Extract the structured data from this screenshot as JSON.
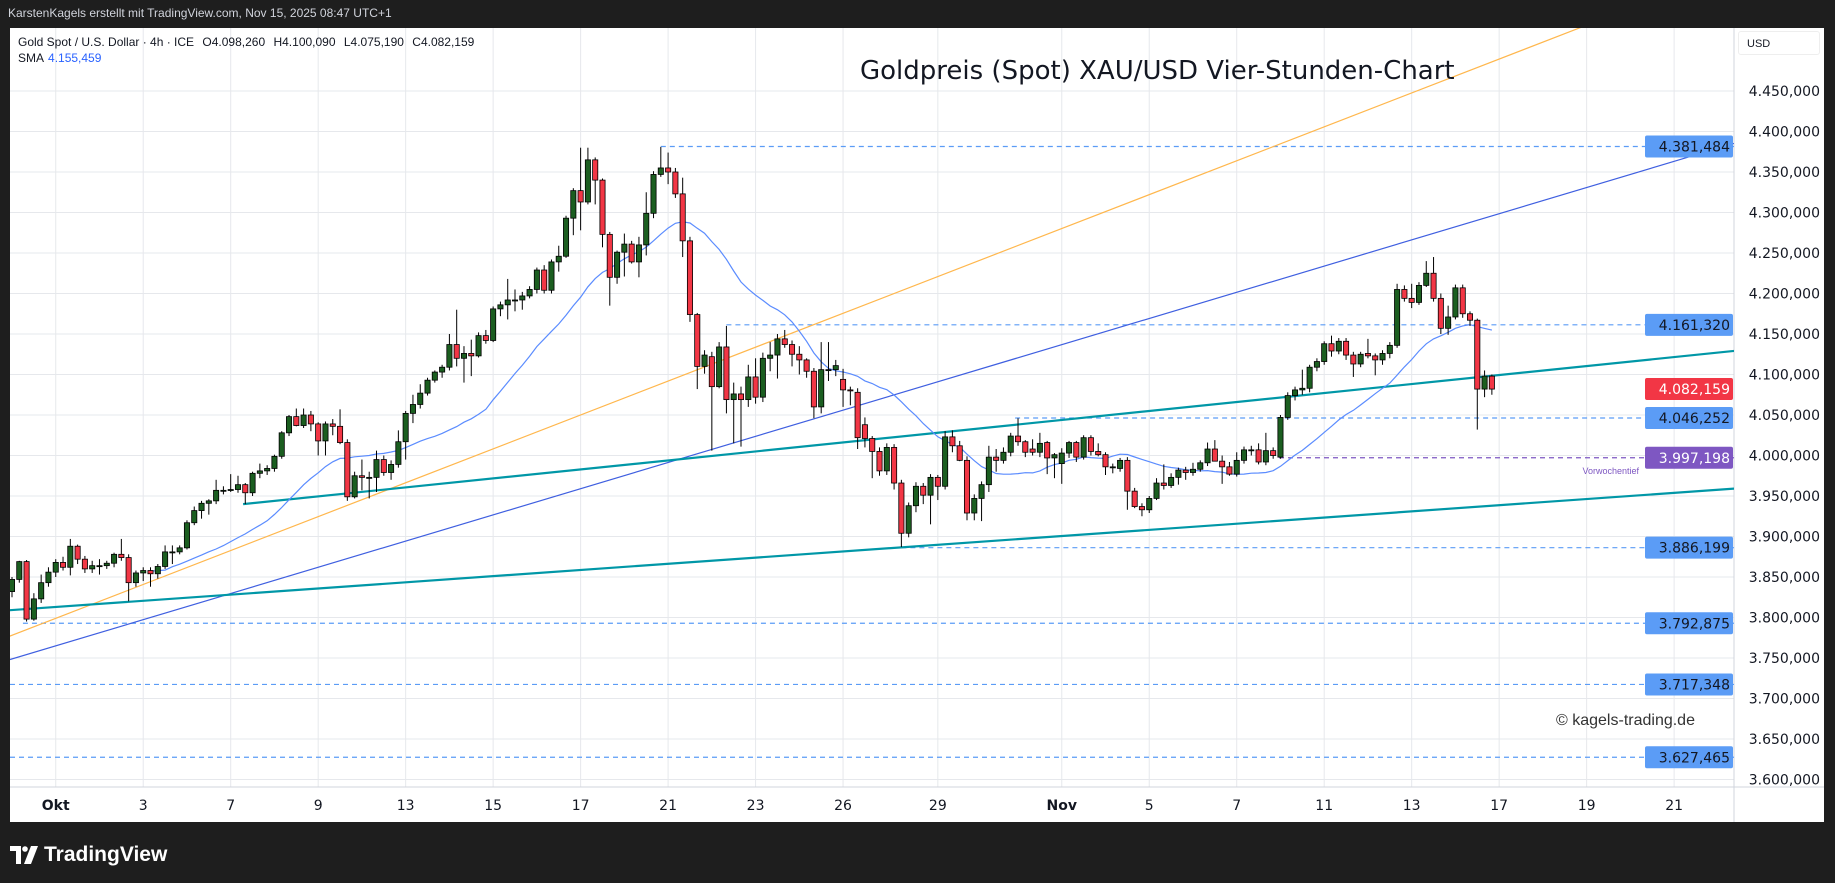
{
  "header": {
    "credit": "KarstenKagels erstellt mit TradingView.com, Nov 15, 2025 08:47 UTC+1"
  },
  "legend": {
    "symbol": "Gold Spot / U.S. Dollar · 4h · ICE",
    "open": "O4.098,260",
    "high": "H4.100,090",
    "low": "L4.075,190",
    "close": "C4.082,159",
    "sma_label": "SMA",
    "sma_value": "4.155,459"
  },
  "currency": "USD",
  "watermark": "© kagels-trading.de",
  "footer": {
    "brand": "TradingView",
    "logo_icon": "tradingview-logo-icon"
  },
  "chart_data": {
    "type": "candlestick",
    "title": "Goldpreis (Spot) XAU/USD Vier-Stunden-Chart",
    "interval": "4h",
    "ylim": [
      3580,
      4520
    ],
    "grid": true,
    "colors": {
      "up": "#1b5e20",
      "down": "#f23645",
      "sma": "#5b8cff",
      "level": "#5b9cf6",
      "last_price": "#f23645",
      "prior_week_low": "#7e57c2"
    },
    "y_ticks": [
      "3.600,000",
      "3.650,000",
      "3.700,000",
      "3.750,000",
      "3.800,000",
      "3.850,000",
      "3.900,000",
      "3.950,000",
      "4.000,000",
      "4.050,000",
      "4.100,000",
      "4.150,000",
      "4.200,000",
      "4.250,000",
      "4.300,000",
      "4.350,000",
      "4.400,000",
      "4.450,000"
    ],
    "y_tick_values": [
      3600,
      3650,
      3700,
      3750,
      3800,
      3850,
      3900,
      3950,
      4000,
      4050,
      4100,
      4150,
      4200,
      4250,
      4300,
      4350,
      4400,
      4450
    ],
    "x_ticks": [
      {
        "label": "Okt",
        "bar": 6,
        "bold": true
      },
      {
        "label": "3",
        "bar": 18
      },
      {
        "label": "7",
        "bar": 30
      },
      {
        "label": "9",
        "bar": 42
      },
      {
        "label": "13",
        "bar": 54
      },
      {
        "label": "15",
        "bar": 66
      },
      {
        "label": "17",
        "bar": 78
      },
      {
        "label": "21",
        "bar": 90
      },
      {
        "label": "23",
        "bar": 102
      },
      {
        "label": "26",
        "bar": 114
      },
      {
        "label": "29",
        "bar": 127
      },
      {
        "label": "Nov",
        "bar": 144,
        "bold": true
      },
      {
        "label": "5",
        "bar": 156
      },
      {
        "label": "7",
        "bar": 168
      },
      {
        "label": "11",
        "bar": 180
      },
      {
        "label": "13",
        "bar": 192
      },
      {
        "label": "17",
        "bar": 204
      },
      {
        "label": "19",
        "bar": 216
      },
      {
        "label": "21",
        "bar": 228
      }
    ],
    "candles": [
      [
        3832,
        3850,
        3825,
        3847
      ],
      [
        3847,
        3870,
        3843,
        3869
      ],
      [
        3869,
        3871,
        3795,
        3798
      ],
      [
        3798,
        3830,
        3796,
        3823
      ],
      [
        3823,
        3853,
        3818,
        3843
      ],
      [
        3843,
        3862,
        3838,
        3856
      ],
      [
        3856,
        3872,
        3850,
        3868
      ],
      [
        3868,
        3875,
        3858,
        3862
      ],
      [
        3862,
        3897,
        3852,
        3888
      ],
      [
        3888,
        3890,
        3866,
        3872
      ],
      [
        3872,
        3876,
        3855,
        3860
      ],
      [
        3860,
        3870,
        3855,
        3864
      ],
      [
        3864,
        3872,
        3853,
        3864
      ],
      [
        3864,
        3870,
        3860,
        3867
      ],
      [
        3867,
        3880,
        3862,
        3878
      ],
      [
        3878,
        3897,
        3870,
        3874
      ],
      [
        3874,
        3878,
        3820,
        3843
      ],
      [
        3843,
        3858,
        3838,
        3855
      ],
      [
        3855,
        3862,
        3845,
        3858
      ],
      [
        3858,
        3862,
        3838,
        3854
      ],
      [
        3854,
        3866,
        3848,
        3863
      ],
      [
        3863,
        3889,
        3860,
        3881
      ],
      [
        3881,
        3889,
        3866,
        3881
      ],
      [
        3881,
        3889,
        3878,
        3886
      ],
      [
        3886,
        3920,
        3884,
        3917
      ],
      [
        3917,
        3937,
        3914,
        3932
      ],
      [
        3932,
        3944,
        3922,
        3941
      ],
      [
        3941,
        3946,
        3927,
        3944
      ],
      [
        3944,
        3970,
        3940,
        3957
      ],
      [
        3957,
        3962,
        3952,
        3957
      ],
      [
        3957,
        3977,
        3955,
        3958
      ],
      [
        3958,
        3975,
        3954,
        3964
      ],
      [
        3964,
        3966,
        3940,
        3954
      ],
      [
        3954,
        3980,
        3950,
        3978
      ],
      [
        3978,
        3990,
        3972,
        3981
      ],
      [
        3981,
        3988,
        3976,
        3984
      ],
      [
        3984,
        4001,
        3980,
        3999
      ],
      [
        3999,
        4030,
        3996,
        4028
      ],
      [
        4028,
        4050,
        4024,
        4048
      ],
      [
        4048,
        4058,
        4036,
        4037
      ],
      [
        4037,
        4058,
        4034,
        4050
      ],
      [
        4050,
        4055,
        4030,
        4039
      ],
      [
        4039,
        4041,
        4000,
        4018
      ],
      [
        4018,
        4042,
        4000,
        4039
      ],
      [
        4039,
        4045,
        4025,
        4036
      ],
      [
        4036,
        4057,
        4014,
        4016
      ],
      [
        4016,
        4020,
        3944,
        3949
      ],
      [
        3949,
        3980,
        3947,
        3975
      ],
      [
        3975,
        3995,
        3957,
        3973
      ],
      [
        3973,
        3980,
        3947,
        3973
      ],
      [
        3973,
        4006,
        3955,
        3995
      ],
      [
        3995,
        4000,
        3975,
        3979
      ],
      [
        3979,
        3994,
        3970,
        3989
      ],
      [
        3989,
        4031,
        3985,
        4017
      ],
      [
        4017,
        4055,
        3995,
        4052
      ],
      [
        4052,
        4075,
        4040,
        4063
      ],
      [
        4063,
        4088,
        4058,
        4077
      ],
      [
        4077,
        4096,
        4074,
        4093
      ],
      [
        4093,
        4105,
        4090,
        4103
      ],
      [
        4103,
        4112,
        4096,
        4109
      ],
      [
        4109,
        4150,
        4105,
        4137
      ],
      [
        4137,
        4180,
        4110,
        4120
      ],
      [
        4120,
        4135,
        4090,
        4126
      ],
      [
        4126,
        4143,
        4098,
        4123
      ],
      [
        4123,
        4152,
        4121,
        4148
      ],
      [
        4148,
        4155,
        4138,
        4142
      ],
      [
        4142,
        4184,
        4140,
        4181
      ],
      [
        4181,
        4190,
        4172,
        4186
      ],
      [
        4186,
        4218,
        4168,
        4192
      ],
      [
        4192,
        4205,
        4178,
        4192
      ],
      [
        4192,
        4202,
        4180,
        4197
      ],
      [
        4197,
        4209,
        4194,
        4205
      ],
      [
        4205,
        4232,
        4200,
        4229
      ],
      [
        4229,
        4235,
        4200,
        4204
      ],
      [
        4204,
        4242,
        4200,
        4239
      ],
      [
        4239,
        4259,
        4227,
        4246
      ],
      [
        4246,
        4296,
        4244,
        4293
      ],
      [
        4293,
        4330,
        4272,
        4327
      ],
      [
        4327,
        4380,
        4278,
        4313
      ],
      [
        4313,
        4380,
        4310,
        4365
      ],
      [
        4365,
        4368,
        4310,
        4340
      ],
      [
        4340,
        4342,
        4257,
        4273
      ],
      [
        4273,
        4276,
        4185,
        4220
      ],
      [
        4220,
        4253,
        4212,
        4251
      ],
      [
        4251,
        4274,
        4221,
        4261
      ],
      [
        4261,
        4265,
        4237,
        4239
      ],
      [
        4239,
        4270,
        4220,
        4260
      ],
      [
        4260,
        4325,
        4247,
        4299
      ],
      [
        4299,
        4351,
        4293,
        4347
      ],
      [
        4347,
        4381,
        4344,
        4355
      ],
      [
        4355,
        4374,
        4335,
        4350
      ],
      [
        4350,
        4355,
        4318,
        4323
      ],
      [
        4323,
        4343,
        4245,
        4265
      ],
      [
        4265,
        4270,
        4165,
        4174
      ],
      [
        4174,
        4176,
        4082,
        4110
      ],
      [
        4110,
        4130,
        4101,
        4124
      ],
      [
        4122,
        4128,
        4006,
        4085
      ],
      [
        4085,
        4140,
        4083,
        4134
      ],
      [
        4134,
        4160,
        4052,
        4069
      ],
      [
        4069,
        4090,
        4015,
        4076
      ],
      [
        4076,
        4085,
        4011,
        4069
      ],
      [
        4069,
        4112,
        4060,
        4097
      ],
      [
        4097,
        4120,
        4064,
        4072
      ],
      [
        4072,
        4127,
        4066,
        4120
      ],
      [
        4120,
        4140,
        4104,
        4124
      ],
      [
        4124,
        4150,
        4095,
        4144
      ],
      [
        4144,
        4155,
        4133,
        4137
      ],
      [
        4137,
        4142,
        4110,
        4125
      ],
      [
        4125,
        4135,
        4100,
        4118
      ],
      [
        4118,
        4120,
        4096,
        4104
      ],
      [
        4104,
        4108,
        4046,
        4060
      ],
      [
        4060,
        4140,
        4052,
        4106
      ],
      [
        4106,
        4140,
        4092,
        4106
      ],
      [
        4106,
        4118,
        4098,
        4111
      ],
      [
        4094,
        4107,
        4060,
        4081
      ],
      [
        4081,
        4085,
        4062,
        4080
      ],
      [
        4078,
        4083,
        4008,
        4022
      ],
      [
        4038,
        4047,
        4010,
        4021
      ],
      [
        4021,
        4024,
        3972,
        4005
      ],
      [
        4005,
        4010,
        3975,
        3981
      ],
      [
        3981,
        4015,
        3976,
        4010
      ],
      [
        4010,
        4014,
        3958,
        3966
      ],
      [
        3966,
        3970,
        3887,
        3904
      ],
      [
        3904,
        3942,
        3899,
        3938
      ],
      [
        3938,
        3967,
        3930,
        3962
      ],
      [
        3962,
        3966,
        3940,
        3951
      ],
      [
        3951,
        3977,
        3915,
        3973
      ],
      [
        3973,
        3976,
        3945,
        3962
      ],
      [
        3962,
        4030,
        3958,
        4023
      ],
      [
        4023,
        4031,
        4004,
        4012
      ],
      [
        4012,
        4018,
        3993,
        3994
      ],
      [
        3994,
        3999,
        3920,
        3929
      ],
      [
        3929,
        3952,
        3920,
        3947
      ],
      [
        3947,
        3968,
        3919,
        3964
      ],
      [
        3964,
        4012,
        3955,
        3998
      ],
      [
        3998,
        4008,
        3980,
        3994
      ],
      [
        3994,
        4010,
        3990,
        4004
      ],
      [
        4004,
        4028,
        3999,
        4024
      ],
      [
        4024,
        4046,
        4012,
        4017
      ],
      [
        4017,
        4019,
        3998,
        4004
      ],
      [
        4008,
        4020,
        4000,
        4004
      ],
      [
        4004,
        4028,
        3998,
        4015
      ],
      [
        4016,
        4018,
        3977,
        3997
      ],
      [
        3997,
        4003,
        3972,
        4001
      ],
      [
        3990,
        4009,
        3965,
        4003
      ],
      [
        4003,
        4018,
        3997,
        4016
      ],
      [
        4016,
        4018,
        3992,
        3998
      ],
      [
        3998,
        4025,
        3995,
        4022
      ],
      [
        4022,
        4025,
        4000,
        4005
      ],
      [
        4005,
        4015,
        3999,
        4001
      ],
      [
        4001,
        4004,
        3976,
        3986
      ],
      [
        3986,
        3990,
        3978,
        3986
      ],
      [
        3984,
        3997,
        3980,
        3994
      ],
      [
        3994,
        3998,
        3933,
        3956
      ],
      [
        3956,
        3960,
        3935,
        3937
      ],
      [
        3937,
        3941,
        3925,
        3933
      ],
      [
        3933,
        3950,
        3929,
        3947
      ],
      [
        3947,
        3972,
        3945,
        3966
      ],
      [
        3966,
        3989,
        3958,
        3963
      ],
      [
        3963,
        3978,
        3960,
        3973
      ],
      [
        3973,
        3985,
        3964,
        3982
      ],
      [
        3982,
        3986,
        3970,
        3979
      ],
      [
        3979,
        3991,
        3975,
        3983
      ],
      [
        3983,
        3994,
        3980,
        3991
      ],
      [
        3991,
        4016,
        3987,
        4008
      ],
      [
        4008,
        4019,
        3996,
        3993
      ],
      [
        3993,
        4000,
        3965,
        3986
      ],
      [
        3986,
        3992,
        3975,
        3977
      ],
      [
        3977,
        4004,
        3974,
        3994
      ],
      [
        3994,
        4011,
        3990,
        4007
      ],
      [
        4007,
        4012,
        4000,
        4007
      ],
      [
        4007,
        4015,
        3989,
        3992
      ],
      [
        3992,
        4028,
        3988,
        4006
      ],
      [
        4006,
        4010,
        3996,
        4000
      ],
      [
        3998,
        4050,
        3996,
        4047
      ],
      [
        4047,
        4078,
        4044,
        4074
      ],
      [
        4074,
        4085,
        4068,
        4081
      ],
      [
        4081,
        4106,
        4075,
        4083
      ],
      [
        4083,
        4112,
        4078,
        4109
      ],
      [
        4109,
        4120,
        4104,
        4116
      ],
      [
        4116,
        4141,
        4112,
        4138
      ],
      [
        4138,
        4148,
        4122,
        4129
      ],
      [
        4129,
        4145,
        4125,
        4141
      ],
      [
        4141,
        4145,
        4118,
        4124
      ],
      [
        4124,
        4128,
        4097,
        4113
      ],
      [
        4113,
        4128,
        4109,
        4125
      ],
      [
        4126,
        4144,
        4120,
        4123
      ],
      [
        4123,
        4126,
        4099,
        4118
      ],
      [
        4118,
        4130,
        4112,
        4126
      ],
      [
        4126,
        4140,
        4120,
        4136
      ],
      [
        4136,
        4212,
        4133,
        4205
      ],
      [
        4205,
        4210,
        4190,
        4194
      ],
      [
        4194,
        4212,
        4182,
        4189
      ],
      [
        4189,
        4214,
        4186,
        4210
      ],
      [
        4210,
        4240,
        4208,
        4225
      ],
      [
        4225,
        4245,
        4190,
        4194
      ],
      [
        4194,
        4200,
        4150,
        4157
      ],
      [
        4157,
        4185,
        4149,
        4171
      ],
      [
        4171,
        4211,
        4168,
        4207
      ],
      [
        4207,
        4211,
        4170,
        4175
      ],
      [
        4175,
        4178,
        4160,
        4167
      ],
      [
        4167,
        4169,
        4032,
        4082
      ],
      [
        4082,
        4105,
        4072,
        4098
      ],
      [
        4098,
        4100,
        4075,
        4082
      ]
    ],
    "trendlines": [
      {
        "name": "orange-trendline",
        "color": "#ffb74d",
        "width": 1.2,
        "points": [
          [
            -0.3,
            3777
          ],
          [
            190.4,
            4442
          ]
        ],
        "extend": "right"
      },
      {
        "name": "blue-trendline",
        "color": "#3f5fe0",
        "width": 1.2,
        "points": [
          [
            8.6,
            3772
          ],
          [
            236.1,
            4385
          ]
        ],
        "extend": "both"
      },
      {
        "name": "teal-lower-trendline",
        "color": "#0097a7",
        "width": 2.2,
        "points": [
          [
            -0.3,
            3809
          ],
          [
            236.1,
            3959
          ]
        ],
        "extend": "right"
      },
      {
        "name": "teal-upper-trendline",
        "color": "#0097a7",
        "width": 2.2,
        "points": [
          [
            31.7,
            3940
          ],
          [
            236.1,
            4129
          ]
        ],
        "extend": "right"
      }
    ],
    "levels": [
      {
        "price": 4381.484,
        "label": "4.381,484",
        "from_bar": 89,
        "color": "#5b9cf6"
      },
      {
        "price": 4161.32,
        "label": "4.161,320",
        "from_bar": 98,
        "color": "#5b9cf6"
      },
      {
        "price": 4046.252,
        "label": "4.046,252",
        "from_bar": 137.6,
        "color": "#5b9cf6"
      },
      {
        "price": 3997.198,
        "label": "3.997,198",
        "from_bar": 173.8,
        "color": "#7e57c2",
        "note": "Vorwochentief"
      },
      {
        "price": 3886.199,
        "label": "3.886,199",
        "from_bar": 122,
        "color": "#5b9cf6"
      },
      {
        "price": 3792.875,
        "label": "3.792,875",
        "from_bar": 1.5,
        "color": "#5b9cf6"
      },
      {
        "price": 3717.348,
        "label": "3.717,348",
        "from_bar": -1,
        "color": "#5b9cf6"
      },
      {
        "price": 3627.465,
        "label": "3.627,465",
        "from_bar": -1,
        "color": "#5b9cf6"
      }
    ],
    "last_price": {
      "price": 4082.159,
      "label": "4.082,159"
    }
  }
}
